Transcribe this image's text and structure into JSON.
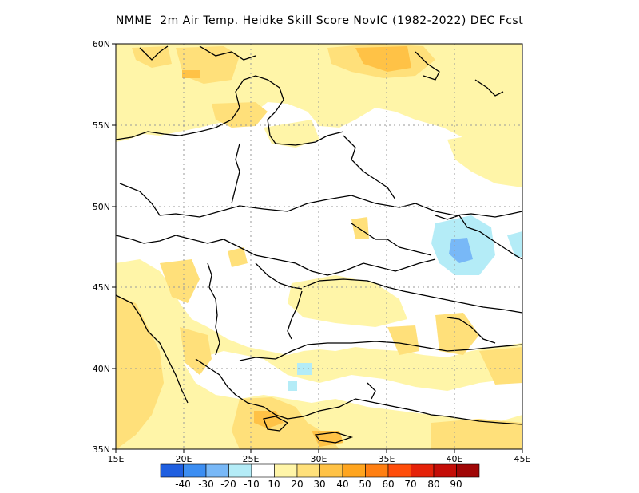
{
  "title": "NMME  2m Air Temp. Heidke Skill Score NovIC (1982-2022) DEC Fcst",
  "map": {
    "lon_range": [
      15,
      45
    ],
    "lat_range": [
      35,
      60
    ],
    "lon_ticks": [
      "15E",
      "20E",
      "25E",
      "30E",
      "35E",
      "40E",
      "45E"
    ],
    "lat_ticks": [
      "35N",
      "40N",
      "45N",
      "50N",
      "55N",
      "60N"
    ],
    "grid": "dotted"
  },
  "colorbar": {
    "colors": [
      "#1f5fe0",
      "#3c8ef2",
      "#78b8f7",
      "#b4ecf7",
      "#ffffff",
      "#fff5a8",
      "#ffe07a",
      "#ffc246",
      "#ffa51f",
      "#ff7f12",
      "#ff4d0a",
      "#e52209",
      "#c40d07",
      "#a00606"
    ],
    "labels": [
      "-40",
      "-30",
      "-20",
      "-10",
      "10",
      "20",
      "30",
      "40",
      "50",
      "60",
      "70",
      "80",
      "90"
    ]
  }
}
